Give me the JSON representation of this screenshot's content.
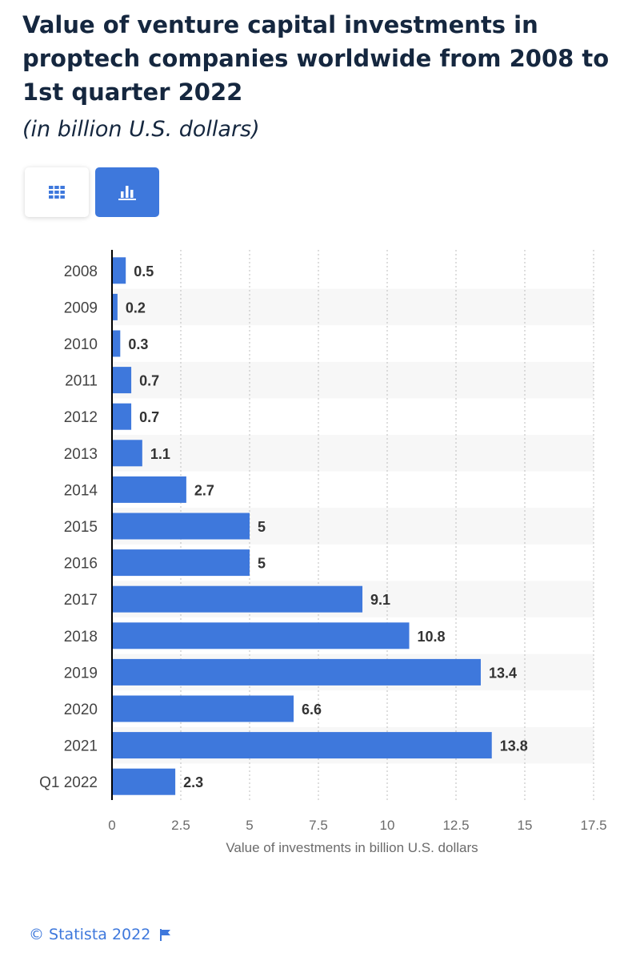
{
  "header": {
    "title": "Value of venture capital investments in proptech companies worldwide from 2008 to 1st quarter 2022",
    "subtitle": "(in billion U.S. dollars)"
  },
  "toolbar": {
    "table_icon": "grid-table-icon",
    "chart_icon": "bar-chart-icon",
    "active_color": "#3e78dc"
  },
  "chart_data": {
    "type": "bar",
    "orientation": "horizontal",
    "categories": [
      "2008",
      "2009",
      "2010",
      "2011",
      "2012",
      "2013",
      "2014",
      "2015",
      "2016",
      "2017",
      "2018",
      "2019",
      "2020",
      "2021",
      "Q1 2022"
    ],
    "values": [
      0.5,
      0.2,
      0.3,
      0.7,
      0.7,
      1.1,
      2.7,
      5,
      5,
      9.1,
      10.8,
      13.4,
      6.6,
      13.8,
      2.3
    ],
    "value_labels": [
      "0.5",
      "0.2",
      "0.3",
      "0.7",
      "0.7",
      "1.1",
      "2.7",
      "5",
      "5",
      "9.1",
      "10.8",
      "13.4",
      "6.6",
      "13.8",
      "2.3"
    ],
    "xlim": [
      0,
      17.5
    ],
    "xticks": [
      "0",
      "2.5",
      "5",
      "7.5",
      "10",
      "12.5",
      "15",
      "17.5"
    ],
    "xlabel": "Value of investments in billion U.S. dollars",
    "grid": "vertical dotted",
    "bar_color": "#3e78dc",
    "legend": "none"
  },
  "footer": {
    "copyright": "© Statista 2022",
    "flag_icon": "flag-icon"
  }
}
